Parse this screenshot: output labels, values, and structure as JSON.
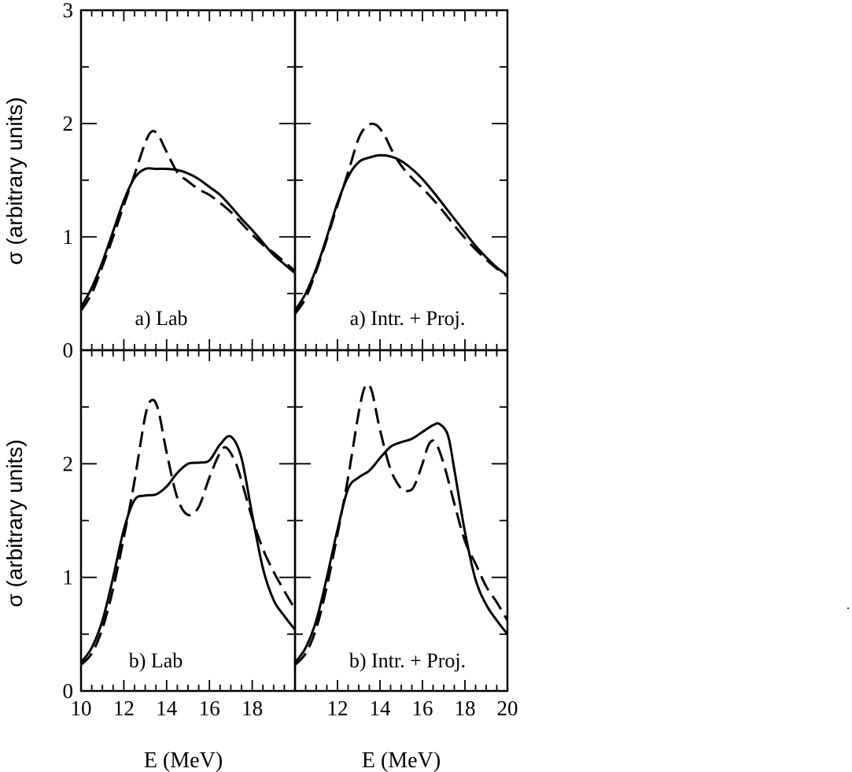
{
  "chart_data": [
    {
      "type": "line",
      "panel": "top-left",
      "label": "a) Lab",
      "xlim": [
        10,
        20
      ],
      "ylim": [
        0,
        3
      ],
      "ylabel": "σ (arbitrary units)",
      "yticks": [
        "0",
        "1",
        "2",
        "3"
      ],
      "series": [
        {
          "style": "solid",
          "x": [
            10,
            10.5,
            11,
            11.5,
            12,
            12.5,
            13,
            13.5,
            14,
            14.5,
            15,
            15.5,
            16,
            16.5,
            17,
            17.5,
            18,
            18.5,
            19,
            19.5,
            20
          ],
          "y": [
            0.38,
            0.55,
            0.78,
            1.05,
            1.32,
            1.52,
            1.6,
            1.6,
            1.6,
            1.59,
            1.56,
            1.51,
            1.44,
            1.37,
            1.27,
            1.16,
            1.06,
            0.95,
            0.84,
            0.76,
            0.68
          ]
        },
        {
          "style": "dashed",
          "x": [
            10,
            10.5,
            11,
            11.5,
            12,
            12.5,
            13,
            13.3,
            13.6,
            14,
            14.5,
            15,
            15.5,
            16,
            16.5,
            17,
            17.5,
            18,
            18.5,
            19,
            19.5,
            20
          ],
          "y": [
            0.35,
            0.5,
            0.74,
            1.0,
            1.28,
            1.55,
            1.83,
            1.93,
            1.9,
            1.75,
            1.57,
            1.49,
            1.42,
            1.37,
            1.3,
            1.22,
            1.12,
            1.02,
            0.93,
            0.86,
            0.78,
            0.7
          ]
        }
      ]
    },
    {
      "type": "line",
      "panel": "top-right",
      "label": "a) Intr. + Proj.",
      "xlim": [
        10,
        20
      ],
      "ylim": [
        0,
        3
      ],
      "series": [
        {
          "style": "solid",
          "x": [
            10,
            10.5,
            11,
            11.5,
            12,
            12.5,
            13,
            13.5,
            14,
            14.5,
            15,
            15.5,
            16,
            16.5,
            17,
            17.5,
            18,
            18.5,
            19,
            19.5,
            20
          ],
          "y": [
            0.35,
            0.5,
            0.72,
            1.0,
            1.3,
            1.53,
            1.66,
            1.7,
            1.72,
            1.71,
            1.67,
            1.6,
            1.51,
            1.4,
            1.28,
            1.16,
            1.04,
            0.92,
            0.82,
            0.73,
            0.66
          ]
        },
        {
          "style": "dashed",
          "x": [
            10,
            10.5,
            11,
            11.5,
            12,
            12.5,
            13,
            13.4,
            13.8,
            14.2,
            14.6,
            15,
            15.5,
            16,
            16.5,
            17,
            17.5,
            18,
            18.5,
            19,
            19.5,
            20
          ],
          "y": [
            0.32,
            0.46,
            0.7,
            0.98,
            1.28,
            1.57,
            1.87,
            1.98,
            1.99,
            1.9,
            1.75,
            1.63,
            1.52,
            1.43,
            1.33,
            1.22,
            1.1,
            0.99,
            0.89,
            0.8,
            0.72,
            0.65
          ]
        }
      ]
    },
    {
      "type": "line",
      "panel": "bottom-left",
      "label": "b) Lab",
      "xlim": [
        10,
        20
      ],
      "ylim": [
        0,
        3
      ],
      "ylabel": "σ (arbitrary units)",
      "xlabel": "E (MeV)",
      "xticks": [
        "10",
        "12",
        "14",
        "16",
        "18"
      ],
      "yticks": [
        "0",
        "1",
        "2"
      ],
      "series": [
        {
          "style": "solid",
          "x": [
            10,
            10.5,
            11,
            11.5,
            12,
            12.5,
            13,
            13.5,
            14,
            14.5,
            15,
            15.5,
            16,
            16.5,
            17,
            17.5,
            18,
            18.5,
            19,
            19.5,
            20
          ],
          "y": [
            0.25,
            0.38,
            0.62,
            1.0,
            1.42,
            1.68,
            1.72,
            1.73,
            1.8,
            1.92,
            2.0,
            2.01,
            2.03,
            2.17,
            2.24,
            2.05,
            1.55,
            1.08,
            0.8,
            0.66,
            0.54
          ]
        },
        {
          "style": "dashed",
          "x": [
            10,
            10.5,
            11,
            11.5,
            12,
            12.5,
            13,
            13.3,
            13.6,
            14,
            14.5,
            15,
            15.5,
            16,
            16.5,
            16.8,
            17.2,
            17.5,
            18,
            18.5,
            19,
            19.5,
            20
          ],
          "y": [
            0.23,
            0.33,
            0.55,
            0.9,
            1.35,
            1.85,
            2.42,
            2.56,
            2.48,
            2.1,
            1.7,
            1.55,
            1.62,
            1.88,
            2.1,
            2.14,
            2.02,
            1.85,
            1.52,
            1.25,
            1.05,
            0.88,
            0.72
          ]
        }
      ]
    },
    {
      "type": "line",
      "panel": "bottom-right",
      "label": "b) Intr. + Proj.",
      "xlim": [
        10,
        20
      ],
      "ylim": [
        0,
        3
      ],
      "xlabel": "E (MeV)",
      "xticks": [
        "12",
        "14",
        "16",
        "18",
        "20"
      ],
      "series": [
        {
          "style": "solid",
          "x": [
            10,
            10.5,
            11,
            11.5,
            12,
            12.5,
            13,
            13.5,
            14,
            14.5,
            15,
            15.5,
            16,
            16.5,
            16.8,
            17.2,
            17.5,
            18,
            18.5,
            19,
            19.5,
            20
          ],
          "y": [
            0.25,
            0.38,
            0.62,
            1.0,
            1.42,
            1.78,
            1.88,
            1.94,
            2.05,
            2.15,
            2.19,
            2.22,
            2.28,
            2.34,
            2.35,
            2.25,
            1.95,
            1.4,
            0.98,
            0.76,
            0.62,
            0.5
          ]
        },
        {
          "style": "dashed",
          "x": [
            10,
            10.5,
            11,
            11.5,
            12,
            12.5,
            13,
            13.3,
            13.6,
            14,
            14.5,
            15,
            15.3,
            15.6,
            16,
            16.3,
            16.6,
            17,
            17.5,
            18,
            18.5,
            19,
            19.5,
            20
          ],
          "y": [
            0.23,
            0.33,
            0.55,
            0.92,
            1.38,
            1.88,
            2.45,
            2.68,
            2.65,
            2.3,
            1.95,
            1.78,
            1.76,
            1.8,
            2.0,
            2.17,
            2.19,
            2.0,
            1.65,
            1.32,
            1.12,
            0.92,
            0.78,
            0.62
          ]
        }
      ]
    }
  ]
}
